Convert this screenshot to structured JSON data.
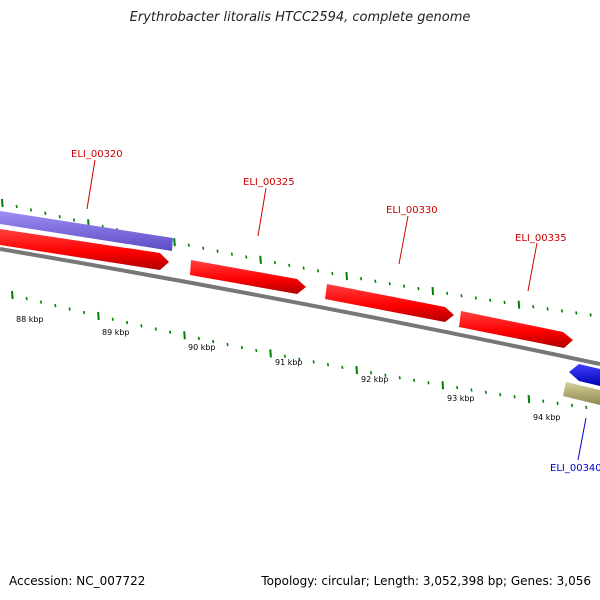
{
  "title": "Erythrobacter litoralis HTCC2594, complete genome",
  "footer": {
    "accession": "Accession: NC_007722",
    "topology": "Topology: circular; Length: 3,052,398 bp; Genes: 3,056"
  },
  "colors": {
    "forward_gene": "#ff0000",
    "reverse_gene_blue": "#0000ff",
    "rna_feature": "#7b68ee",
    "pseudo_feature": "#b8b27a",
    "backbone": "#808080",
    "tick": "#008000",
    "forward_label": "#cc0000",
    "reverse_label": "#0000cc"
  },
  "gene_labels": [
    {
      "id": "ELI_00320",
      "strand": "forward"
    },
    {
      "id": "ELI_00325",
      "strand": "forward"
    },
    {
      "id": "ELI_00330",
      "strand": "forward"
    },
    {
      "id": "ELI_00335",
      "strand": "forward"
    },
    {
      "id": "ELI_00340",
      "strand": "reverse"
    }
  ],
  "kbp_labels": [
    "88 kbp",
    "89 kbp",
    "90 kbp",
    "91 kbp",
    "92 kbp",
    "93 kbp",
    "94 kbp"
  ]
}
